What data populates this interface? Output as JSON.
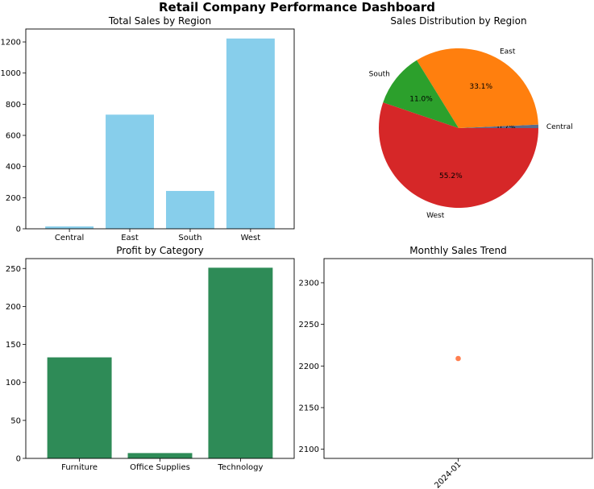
{
  "dashboard": {
    "title": "Retail Company Performance Dashboard"
  },
  "chart_data": [
    {
      "type": "bar",
      "title": "Total Sales by Region",
      "xlabel": "",
      "ylabel": "",
      "categories": [
        "Central",
        "East",
        "South",
        "West"
      ],
      "values": [
        15,
        733,
        243,
        1222
      ],
      "ylim": [
        0,
        1283
      ],
      "yticks": [
        0,
        200,
        400,
        600,
        800,
        1000,
        1200
      ],
      "color": "#87CEEB",
      "grid": false
    },
    {
      "type": "pie",
      "title": "Sales Distribution by Region",
      "labels": [
        "Central",
        "East",
        "South",
        "West"
      ],
      "values": [
        0.7,
        33.1,
        11.0,
        55.2
      ],
      "value_labels": [
        "0.7%",
        "33.1%",
        "11.0%",
        "55.2%"
      ],
      "colors": [
        "#5A6B8C",
        "#FF7F0E",
        "#2CA02C",
        "#D62728"
      ]
    },
    {
      "type": "bar",
      "title": "Profit by Category",
      "xlabel": "",
      "ylabel": "",
      "categories": [
        "Furniture",
        "Office Supplies",
        "Technology"
      ],
      "values": [
        133,
        7,
        251
      ],
      "ylim": [
        0,
        263
      ],
      "yticks": [
        0,
        50,
        100,
        150,
        200,
        250
      ],
      "color": "#2E8B57",
      "grid": false
    },
    {
      "type": "line",
      "title": "Monthly Sales Trend",
      "xlabel": "",
      "ylabel": "",
      "x": [
        "2024-01"
      ],
      "y": [
        2209
      ],
      "ylim": [
        2089,
        2329
      ],
      "yticks": [
        2100,
        2150,
        2200,
        2250,
        2300
      ],
      "color": "#FF7F50",
      "marker": "o",
      "grid": false
    }
  ]
}
